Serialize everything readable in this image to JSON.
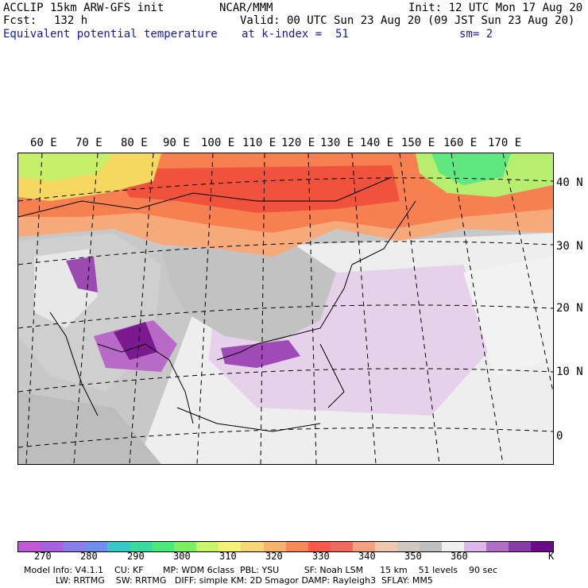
{
  "header": {
    "model": "ACCLIP 15km ARW-GFS init",
    "org": "NCAR/MMM",
    "init": "Init: 12 UTC Mon 17 Aug 20",
    "fcst_label": "Fcst:",
    "fcst_value": "132 h",
    "valid": "Valid: 00 UTC Sun 23 Aug 20 (09 JST Sun 23 Aug 20)",
    "field": "Equivalent potential temperature",
    "level": "at k-index =  51",
    "smooth": "sm= 2"
  },
  "map": {
    "lon_labels": [
      "60 E",
      "70 E",
      "80 E",
      "90 E",
      "100 E",
      "110 E",
      "120 E",
      "130 E",
      "140 E",
      "150 E",
      "160 E",
      "170 E"
    ],
    "lat_labels": [
      "40 N",
      "30 N",
      "20 N",
      "10 N",
      "0"
    ]
  },
  "colorbar": {
    "ticks": [
      "270",
      "280",
      "290",
      "300",
      "310",
      "320",
      "330",
      "340",
      "350",
      "360"
    ],
    "unit": "K",
    "colors": [
      "#c456d8",
      "#a85fe0",
      "#8a7ee8",
      "#6f8ef0",
      "#38c8c8",
      "#3ad9a0",
      "#4de87a",
      "#7bf060",
      "#c8f56a",
      "#f5f07a",
      "#f8d87a",
      "#f7b46a",
      "#f88a58",
      "#f85a4a",
      "#f06a60",
      "#f7a080",
      "#f0c8b0",
      "#d0c8c0",
      "#c0c0c0",
      "#f0f0f0",
      "#ddb8e8",
      "#b070c8",
      "#8a3aa8",
      "#6a0a8a"
    ]
  },
  "footer": {
    "line1": "Model Info: V4.1.1    CU: KF       MP: WDM 6class  PBL: YSU         SF: Noah LSM      15 km    51 levels    90 sec",
    "line2": "LW: RRTMG    SW: RRTMG   DIFF: simple KM: 2D Smagor DAMP: Rayleigh3  SFLAY: MM5"
  }
}
